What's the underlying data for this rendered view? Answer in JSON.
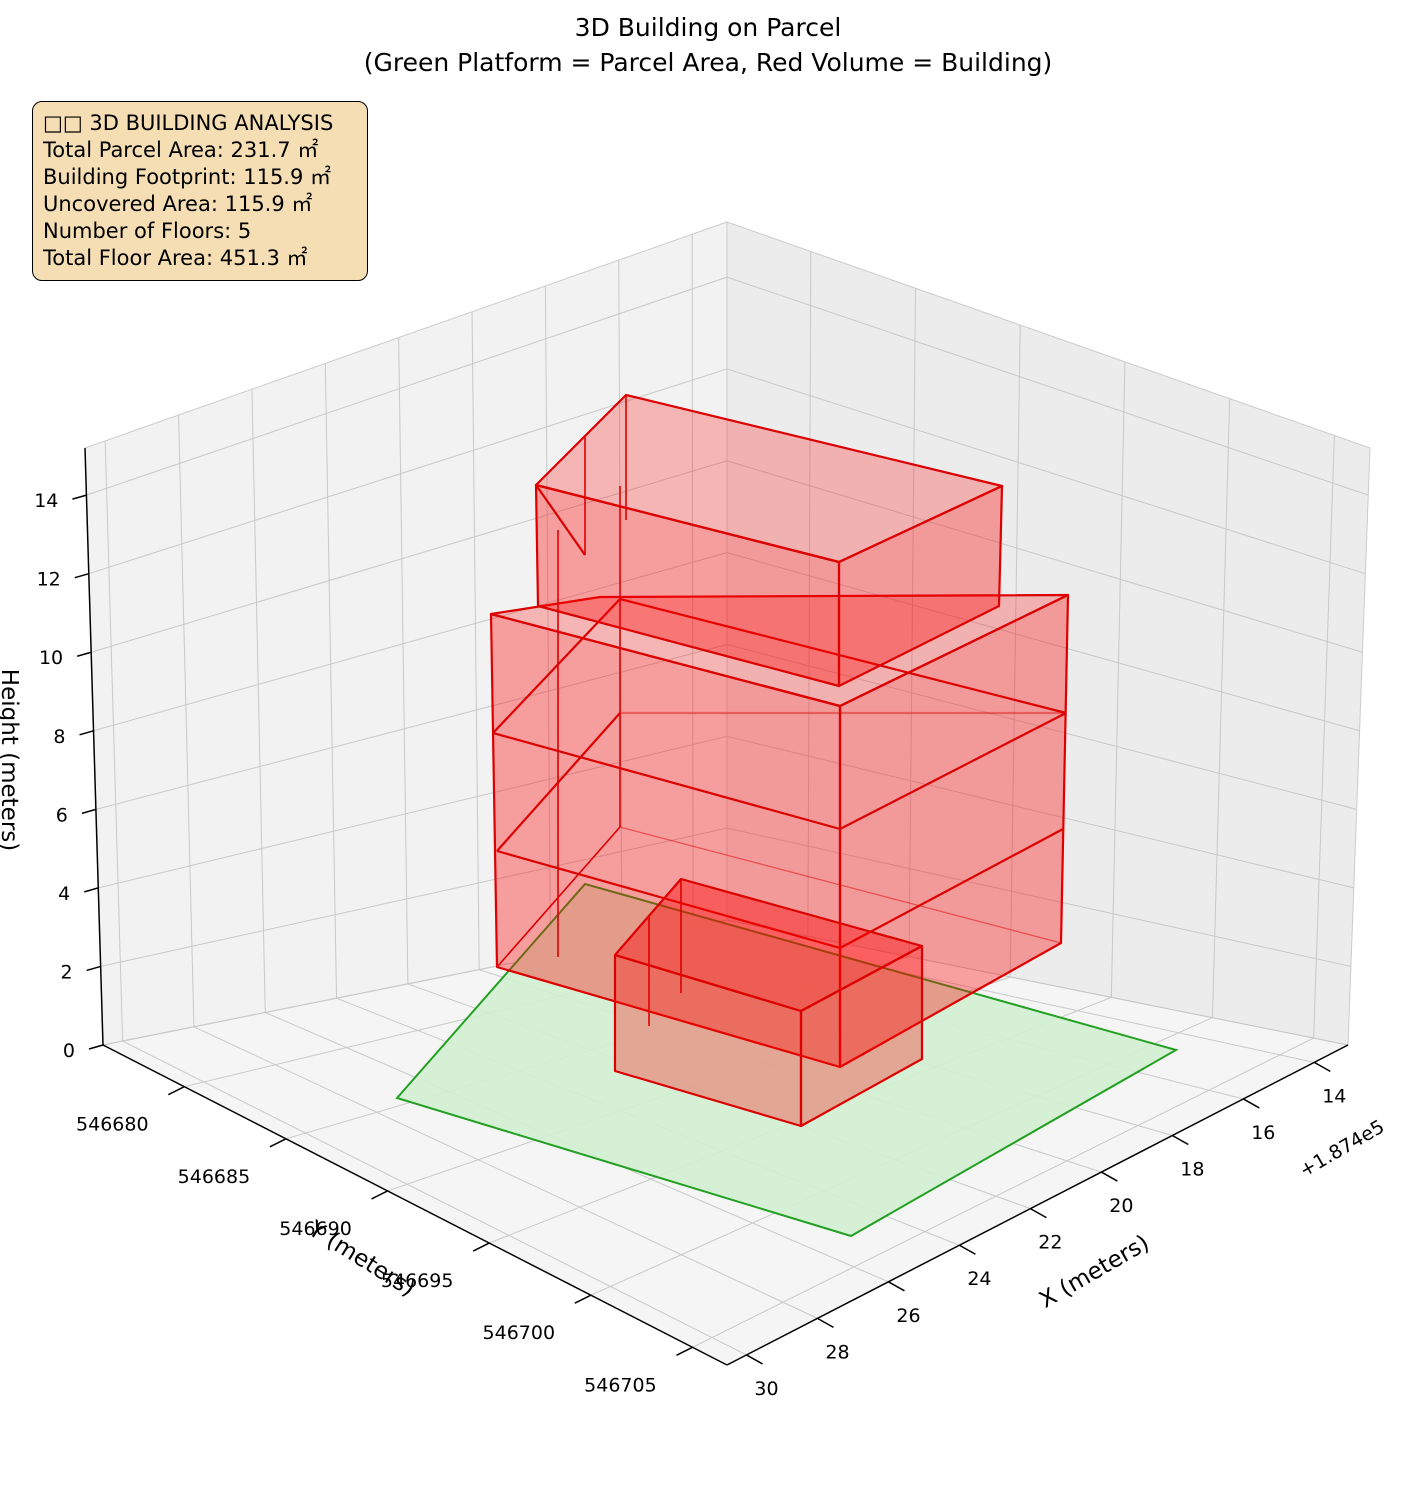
{
  "chart_data": {
    "type": "3d-box",
    "title_lines": [
      "3D Building on Parcel",
      "(Green Platform = Parcel Area, Red Volume = Building)"
    ],
    "xlabel": "X (meters)",
    "ylabel": "Y (meters)",
    "zlabel": "Height (meters)",
    "x_offset_label": "+1.874e5",
    "x_ticks": [
      "14",
      "16",
      "18",
      "20",
      "22",
      "24",
      "26",
      "28",
      "30"
    ],
    "y_ticks": [
      "546680",
      "546685",
      "546690",
      "546695",
      "546700",
      "546705"
    ],
    "z_ticks": [
      "0",
      "2",
      "4",
      "6",
      "8",
      "10",
      "12",
      "14"
    ],
    "colors": {
      "parcel_fill": "#d2f0d2",
      "parcel_edge": "#22a022",
      "building_fill": "#ff0000",
      "building_edge": "#dd0000"
    },
    "floors": 5
  },
  "info": {
    "title": "□□ 3D BUILDING ANALYSIS",
    "lines": [
      "Total Parcel Area: 231.7 ㎡",
      "Building Footprint: 115.9 ㎡",
      "Uncovered Area: 115.9 ㎡",
      "Number of Floors: 5",
      "Total Floor Area: 451.3 ㎡"
    ]
  }
}
